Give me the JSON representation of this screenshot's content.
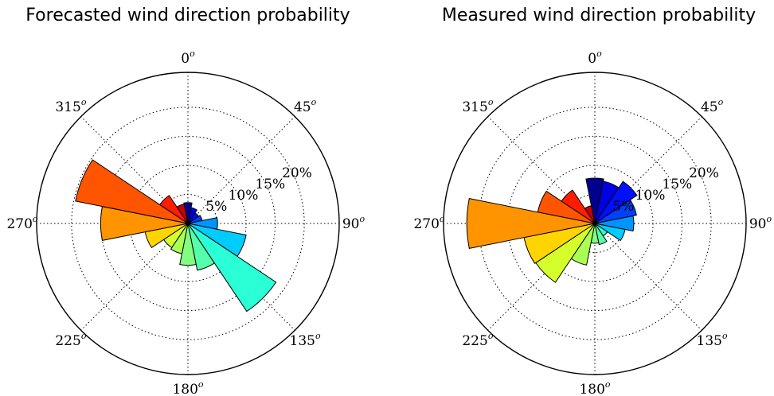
{
  "chart_data": [
    {
      "type": "polar-bar",
      "title": "Forecasted wind direction probability",
      "angle_ticks": [
        {
          "deg": 0,
          "label": "0",
          "sup": "o"
        },
        {
          "deg": 45,
          "label": "45",
          "sup": "o"
        },
        {
          "deg": 90,
          "label": "90",
          "sup": "o"
        },
        {
          "deg": 135,
          "label": "135",
          "sup": "o"
        },
        {
          "deg": 180,
          "label": "180",
          "sup": "o"
        },
        {
          "deg": 225,
          "label": "225",
          "sup": "o"
        },
        {
          "deg": 270,
          "label": "270",
          "sup": "o"
        },
        {
          "deg": 315,
          "label": "315",
          "sup": "o"
        }
      ],
      "radial_ticks": [
        5,
        10,
        15,
        20
      ],
      "radial_tick_labels": [
        "5%",
        "10%",
        "15%",
        "20%"
      ],
      "radial_max": 26,
      "bin_width_deg": 22.5,
      "grid": true,
      "directions": [
        0,
        22.5,
        45,
        67.5,
        90,
        112.5,
        135,
        157.5,
        180,
        202.5,
        225,
        247.5,
        270,
        292.5,
        315,
        337.5
      ],
      "values": [
        3.6,
        2.8,
        2.2,
        2.5,
        5.1,
        10.2,
        18.2,
        8.2,
        7.2,
        5.3,
        5.0,
        7.5,
        15.0,
        19.7,
        5.8,
        3.4
      ],
      "colors": [
        "#00008f",
        "#0000e0",
        "#0010ff",
        "#0040ff",
        "#0094ff",
        "#00ccff",
        "#2affd6",
        "#55ffaa",
        "#80ff80",
        "#aaff55",
        "#d4ff2b",
        "#ffd400",
        "#ff9400",
        "#ff5500",
        "#ff1c00",
        "#c80000"
      ]
    },
    {
      "type": "polar-bar",
      "title": "Measured wind direction probability",
      "angle_ticks": [
        {
          "deg": 0,
          "label": "0",
          "sup": "o"
        },
        {
          "deg": 45,
          "label": "45",
          "sup": "o"
        },
        {
          "deg": 90,
          "label": "90",
          "sup": "o"
        },
        {
          "deg": 135,
          "label": "135",
          "sup": "o"
        },
        {
          "deg": 180,
          "label": "180",
          "sup": "o"
        },
        {
          "deg": 225,
          "label": "225",
          "sup": "o"
        },
        {
          "deg": 270,
          "label": "270",
          "sup": "o"
        },
        {
          "deg": 315,
          "label": "315",
          "sup": "o"
        }
      ],
      "radial_ticks": [
        5,
        10,
        15,
        20
      ],
      "radial_tick_labels": [
        "5%",
        "10%",
        "15%",
        "20%"
      ],
      "radial_max": 26,
      "bin_width_deg": 22.5,
      "grid": true,
      "directions": [
        0,
        22.5,
        45,
        67.5,
        90,
        112.5,
        135,
        157.5,
        180,
        202.5,
        225,
        247.5,
        270,
        292.5,
        315,
        337.5
      ],
      "values": [
        7.8,
        7.4,
        8.7,
        7.3,
        6.7,
        5.3,
        2.6,
        3.7,
        3.4,
        7.3,
        12.2,
        12.4,
        22.0,
        10.0,
        6.9,
        3.1
      ],
      "colors": [
        "#00008f",
        "#0000e0",
        "#0010ff",
        "#0040ff",
        "#0094ff",
        "#00ccff",
        "#2affd6",
        "#55ffaa",
        "#80ff80",
        "#aaff55",
        "#d4ff2b",
        "#ffd400",
        "#ff9400",
        "#ff5500",
        "#ff1c00",
        "#c80000"
      ]
    }
  ]
}
